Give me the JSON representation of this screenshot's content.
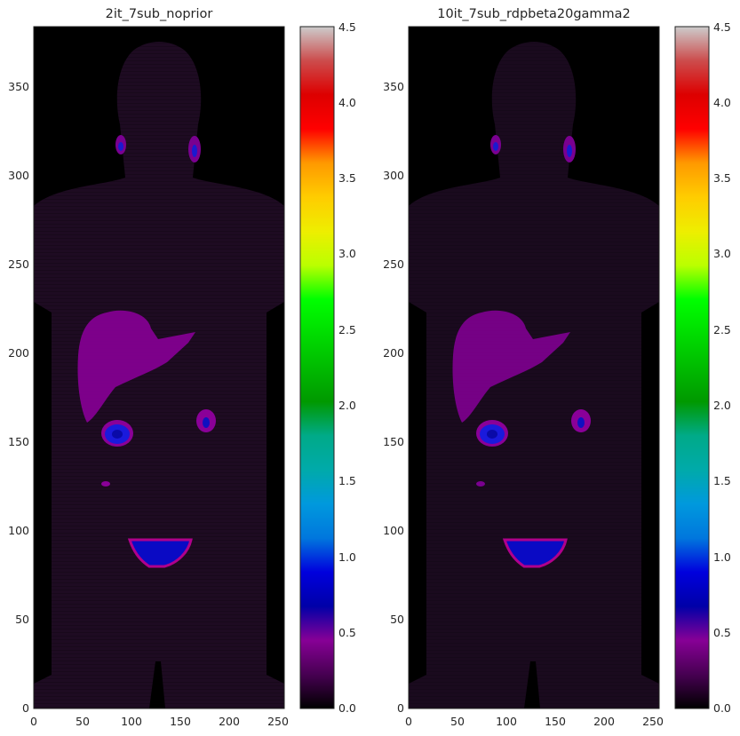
{
  "panels": [
    {
      "title": "2it_7sub_noprior",
      "intensity": "strong"
    },
    {
      "title": "10it_7sub_rdpbeta20gamma2",
      "intensity": "smooth"
    }
  ],
  "chart_data": [
    {
      "type": "heatmap",
      "title": "2it_7sub_noprior",
      "xlabel": "",
      "ylabel": "",
      "xlim": [
        0,
        256
      ],
      "ylim": [
        0,
        384
      ],
      "xticks": [
        0,
        50,
        100,
        150,
        200,
        250
      ],
      "yticks": [
        0,
        50,
        100,
        150,
        200,
        250,
        300,
        350
      ],
      "colormap": "nipy_spectral",
      "colorbar": {
        "vmin": 0.0,
        "vmax": 4.5,
        "ticks": [
          "0.0",
          "0.5",
          "1.0",
          "1.5",
          "2.0",
          "2.5",
          "3.0",
          "3.5",
          "4.0",
          "4.5"
        ]
      }
    },
    {
      "type": "heatmap",
      "title": "10it_7sub_rdpbeta20gamma2",
      "xlabel": "",
      "ylabel": "",
      "xlim": [
        0,
        256
      ],
      "ylim": [
        0,
        384
      ],
      "xticks": [
        0,
        50,
        100,
        150,
        200,
        250
      ],
      "yticks": [
        0,
        50,
        100,
        150,
        200,
        250,
        300,
        350
      ],
      "colormap": "nipy_spectral",
      "colorbar": {
        "vmin": 0.0,
        "vmax": 4.5,
        "ticks": [
          "0.0",
          "0.5",
          "1.0",
          "1.5",
          "2.0",
          "2.5",
          "3.0",
          "3.5",
          "4.0",
          "4.5"
        ]
      }
    }
  ]
}
